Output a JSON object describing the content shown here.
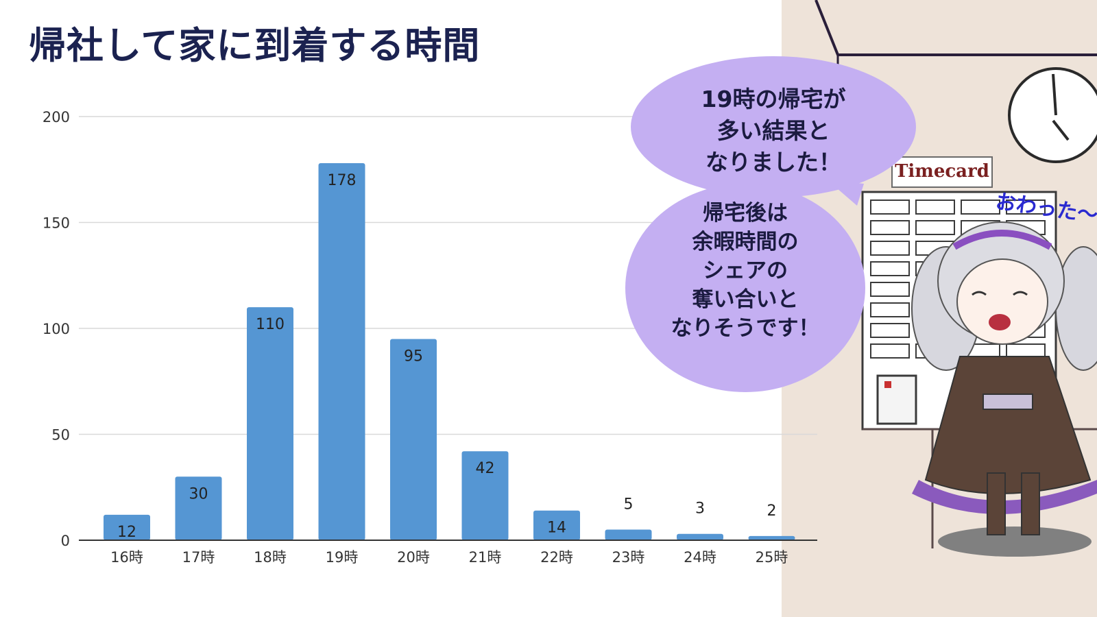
{
  "title": "帰社して家に到着する時間",
  "chart_data": {
    "type": "bar",
    "title": "帰社して家に到着する時間",
    "categories": [
      "16時",
      "17時",
      "18時",
      "19時",
      "20時",
      "21時",
      "22時",
      "23時",
      "24時",
      "25時"
    ],
    "values": [
      12,
      30,
      110,
      178,
      95,
      42,
      14,
      5,
      3,
      2
    ],
    "ylim": [
      0,
      200
    ],
    "yticks": [
      0,
      50,
      100,
      150,
      200
    ],
    "grid": true,
    "bar_color": "#5596d3"
  },
  "bubbles": [
    {
      "lines": [
        "19時の帰宅が",
        "多い結果と",
        "なりました！"
      ]
    },
    {
      "lines": [
        "帰宅後は",
        "余暇時間の",
        "シェアの",
        "奪い合いと",
        "なりそうです！"
      ]
    }
  ],
  "illustration": {
    "timecard_label": "Timecard",
    "exclamation": "おわった～!",
    "icons": [
      "clock-icon",
      "timecard-rack",
      "girl-character"
    ]
  }
}
